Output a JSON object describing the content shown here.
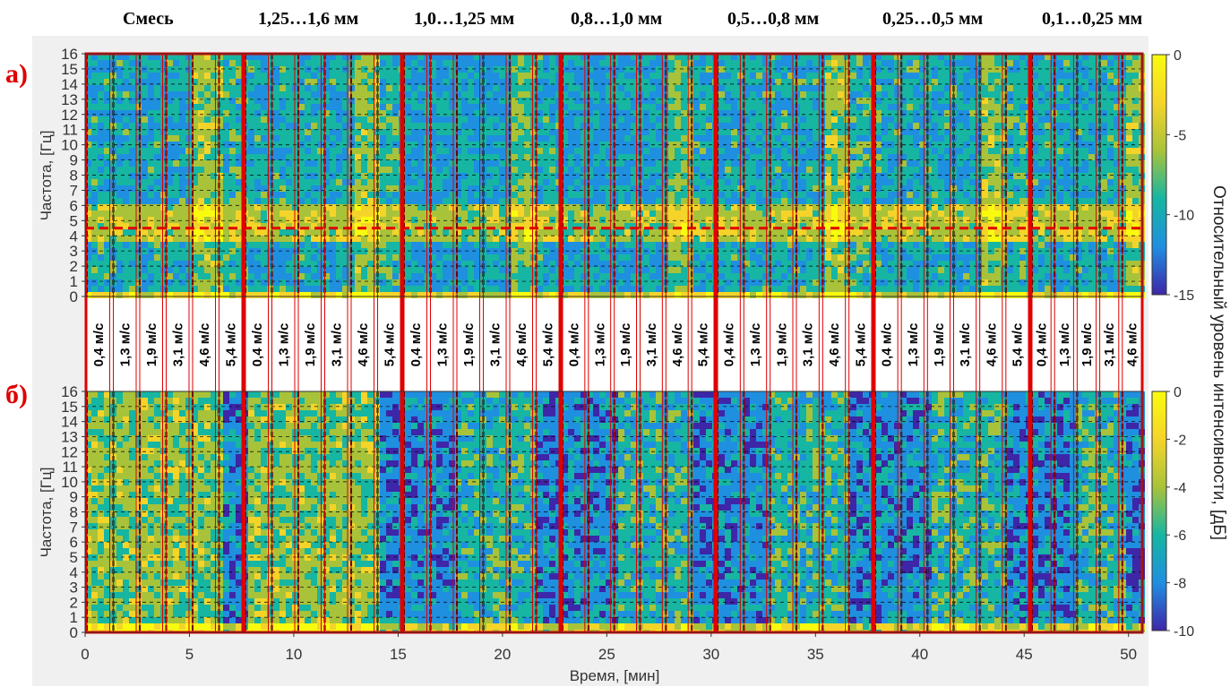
{
  "groups": [
    "Смесь",
    "1,25…1,6 мм",
    "1,0…1,25 мм",
    "0,8…1,0 мм",
    "0,5…0,8 мм",
    "0,25…0,5 мм",
    "0,1…0,25 мм"
  ],
  "panel_labels": [
    "а)",
    "б)"
  ],
  "speed_labels": [
    [
      "0,4 м/с",
      "1,3 м/с",
      "1,9 м/с",
      "3,1 м/с",
      "4,6 м/с",
      "5,4 м/с"
    ],
    [
      "0,4 м/с",
      "1,3 м/с",
      "1,9 м/с",
      "3,1 м/с",
      "4,6 м/с",
      "5,4 м/с"
    ],
    [
      "0,4 м/с",
      "1,3 м/с",
      "1,9 м/с",
      "3,1 м/с",
      "4,6 м/с",
      "5,4 м/с"
    ],
    [
      "0,4 м/с",
      "1,3 м/с",
      "1,9 м/с",
      "3,1 м/с",
      "4,6 м/с",
      "5,4 м/с"
    ],
    [
      "0,4 м/с",
      "1,3 м/с",
      "1,9 м/с",
      "3,1 м/с",
      "4,6 м/с",
      "5,4 м/с"
    ],
    [
      "0,4 м/с",
      "1,3 м/с",
      "1,9 м/с",
      "3,1 м/с",
      "4,6 м/с",
      "5,4 м/с"
    ],
    [
      "0,4 м/с",
      "1,3 м/с",
      "1,9 м/с",
      "3,1 м/с",
      "4,6 м/с"
    ]
  ],
  "colors": {
    "accent": "#e00000",
    "cmap": [
      "#3e26a8",
      "#1f8fe0",
      "#16b6a2",
      "#a8c33a",
      "#f5d42a",
      "#f9fb0e"
    ]
  },
  "chart_data": [
    {
      "type": "heatmap",
      "panel": "а)",
      "xlabel": "",
      "ylabel": "Частота, [Гц]",
      "xlim": [
        0,
        50.7
      ],
      "ylim": [
        0,
        16
      ],
      "yticks": [
        0,
        1,
        2,
        3,
        4,
        5,
        6,
        7,
        8,
        9,
        10,
        11,
        12,
        13,
        14,
        15,
        16
      ],
      "reference_line_y": 4.5,
      "colorbar": {
        "ticks": [
          0,
          -5,
          -10,
          -15
        ],
        "range": [
          -15,
          0
        ]
      }
    },
    {
      "type": "heatmap",
      "panel": "б)",
      "xlabel": "Время, [мин]",
      "ylabel": "Частота, [Гц]",
      "xlim": [
        0,
        50.7
      ],
      "ylim": [
        0,
        16
      ],
      "xticks": [
        0,
        5,
        10,
        15,
        20,
        25,
        30,
        35,
        40,
        45,
        50
      ],
      "yticks": [
        0,
        1,
        2,
        3,
        4,
        5,
        6,
        7,
        8,
        9,
        10,
        11,
        12,
        13,
        14,
        15,
        16
      ],
      "colorbar": {
        "ticks": [
          0,
          -2,
          -4,
          -6,
          -8,
          -10
        ],
        "range": [
          -10,
          0
        ]
      }
    }
  ],
  "colorbar_label": "Относительный уровень интенсивности, [дБ]"
}
